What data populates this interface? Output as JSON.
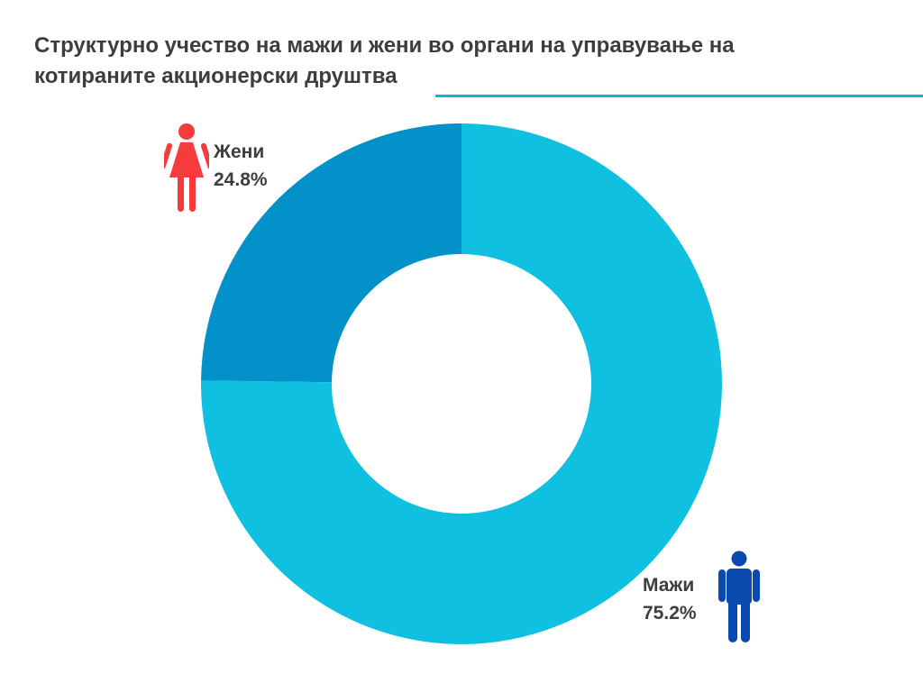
{
  "title": "Структурно учество на мажи и жени во органи на управување на котираните акционерски друштва",
  "colors": {
    "accent_rule": "#12b3d9",
    "women_slice": "#0291c8",
    "men_slice": "#0fc0e0",
    "women_icon": "#f53b3b",
    "men_icon": "#0a49ad"
  },
  "icons": {
    "women": "female-person-icon",
    "men": "male-person-icon"
  },
  "chart_data": {
    "type": "pie",
    "title": "Структурно учество на мажи и жени во органи на управување на котираните акционерски друштва",
    "donut": true,
    "legend": "none",
    "categories": [
      "Жени",
      "Мажи"
    ],
    "values": [
      24.8,
      75.2
    ],
    "value_labels": [
      "24.8%",
      "75.2%"
    ]
  }
}
